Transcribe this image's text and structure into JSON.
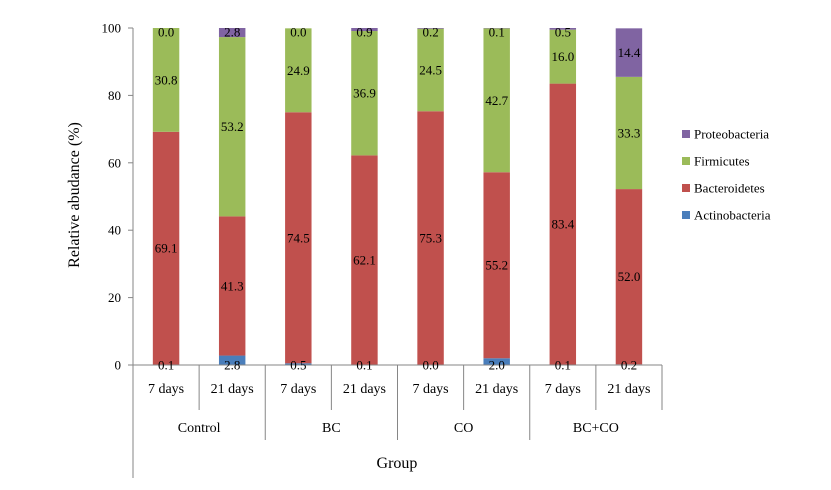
{
  "chart_data": {
    "type": "bar",
    "stacked": true,
    "title": "",
    "xlabel": "Group",
    "ylabel": "Relative abudance (%)",
    "ylim": [
      0,
      100
    ],
    "yticks": [
      "0",
      "20",
      "40",
      "60",
      "80",
      "100"
    ],
    "grid": false,
    "legend_position": "right",
    "groups": [
      {
        "name": "Control",
        "categories": [
          "7 days",
          "21 days"
        ]
      },
      {
        "name": "BC",
        "categories": [
          "7 days",
          "21 days"
        ]
      },
      {
        "name": "CO",
        "categories": [
          "7 days",
          "21 days"
        ]
      },
      {
        "name": "BC+CO",
        "categories": [
          "7 days",
          "21 days"
        ]
      }
    ],
    "series": [
      {
        "name": "Actinobacteria",
        "color": "#4a7ebb",
        "values": [
          0.1,
          2.8,
          0.5,
          0.1,
          0.0,
          2.0,
          0.1,
          0.2
        ],
        "labels": [
          "0.1",
          "2.8",
          "0.5",
          "0.1",
          "0.0",
          "2.0",
          "0.1",
          "0.2"
        ]
      },
      {
        "name": "Bacteroidetes",
        "color": "#c0504d",
        "values": [
          69.1,
          41.3,
          74.5,
          62.1,
          75.3,
          55.2,
          83.4,
          52.0
        ],
        "labels": [
          "69.1",
          "41.3",
          "74.5",
          "62.1",
          "75.3",
          "55.2",
          "83.4",
          "52.0"
        ]
      },
      {
        "name": "Firmicutes",
        "color": "#9bbb59",
        "values": [
          30.8,
          53.2,
          24.9,
          36.9,
          24.5,
          42.7,
          16.0,
          33.3
        ],
        "labels": [
          "30.8",
          "53.2",
          "24.9",
          "36.9",
          "24.5",
          "42.7",
          "16.0",
          "33.3"
        ]
      },
      {
        "name": "Proteobacteria",
        "color": "#8064a2",
        "values": [
          0.0,
          2.8,
          0.0,
          0.9,
          0.2,
          0.1,
          0.5,
          14.4
        ],
        "labels": [
          "0.0",
          "2.8",
          "0.0",
          "0.9",
          "0.2",
          "0.1",
          "0.5",
          "14.4"
        ]
      }
    ]
  }
}
